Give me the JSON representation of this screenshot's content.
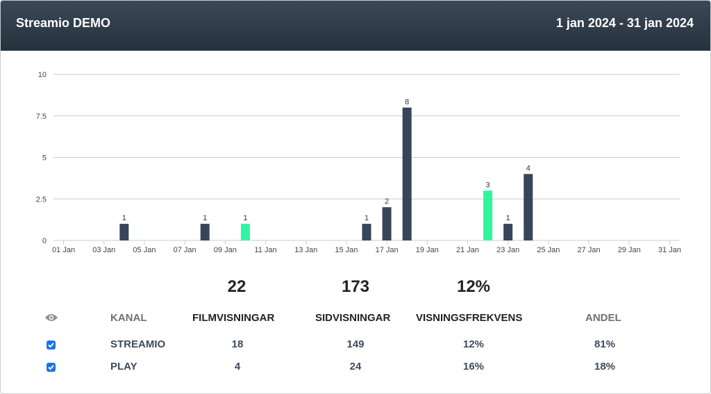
{
  "header": {
    "title": "Streamio DEMO",
    "range": "1 jan 2024 - 31 jan 2024"
  },
  "chart_data": {
    "type": "bar",
    "title": "",
    "xlabel": "",
    "ylabel": "",
    "ylim": [
      0,
      10
    ],
    "yticks": [
      "0",
      "2.5",
      "5",
      "7.5",
      "10"
    ],
    "x_tick_labels": [
      "01 Jan",
      "03 Jan",
      "05 Jan",
      "07 Jan",
      "09 Jan",
      "11 Jan",
      "13 Jan",
      "15 Jan",
      "17 Jan",
      "19 Jan",
      "21 Jan",
      "23 Jan",
      "25 Jan",
      "27 Jan",
      "29 Jan",
      "31 Jan"
    ],
    "grid": true,
    "colors": {
      "dark": "#38445a",
      "highlight": "#2ff5a0"
    },
    "bars": [
      {
        "day": 4,
        "value": 1,
        "label": "1",
        "color": "dark"
      },
      {
        "day": 8,
        "value": 1,
        "label": "1",
        "color": "dark"
      },
      {
        "day": 10,
        "value": 1,
        "label": "1",
        "color": "highlight"
      },
      {
        "day": 16,
        "value": 1,
        "label": "1",
        "color": "dark"
      },
      {
        "day": 17,
        "value": 2,
        "label": "2",
        "color": "dark"
      },
      {
        "day": 18,
        "value": 8,
        "label": "8",
        "color": "dark"
      },
      {
        "day": 22,
        "value": 3,
        "label": "3",
        "color": "highlight"
      },
      {
        "day": 23,
        "value": 1,
        "label": "1",
        "color": "dark"
      },
      {
        "day": 24,
        "value": 4,
        "label": "4",
        "color": "dark"
      }
    ]
  },
  "totals": {
    "filmvisningar": "22",
    "sidvisningar": "173",
    "frekvens": "12%"
  },
  "table": {
    "headers": {
      "kanal": "KANAL",
      "film": "FILMVISNINGAR",
      "sid": "SIDVISNINGAR",
      "frekvens": "VISNINGSFREKVENS",
      "andel": "ANDEL"
    },
    "rows": [
      {
        "kanal": "STREAMIO",
        "film": "18",
        "sid": "149",
        "frekvens": "12%",
        "andel": "81%",
        "checked": true
      },
      {
        "kanal": "PLAY",
        "film": "4",
        "sid": "24",
        "frekvens": "16%",
        "andel": "18%",
        "checked": true
      }
    ]
  },
  "icons": {
    "eye": "eye-icon",
    "checkbox": "checkbox-checked-icon"
  }
}
